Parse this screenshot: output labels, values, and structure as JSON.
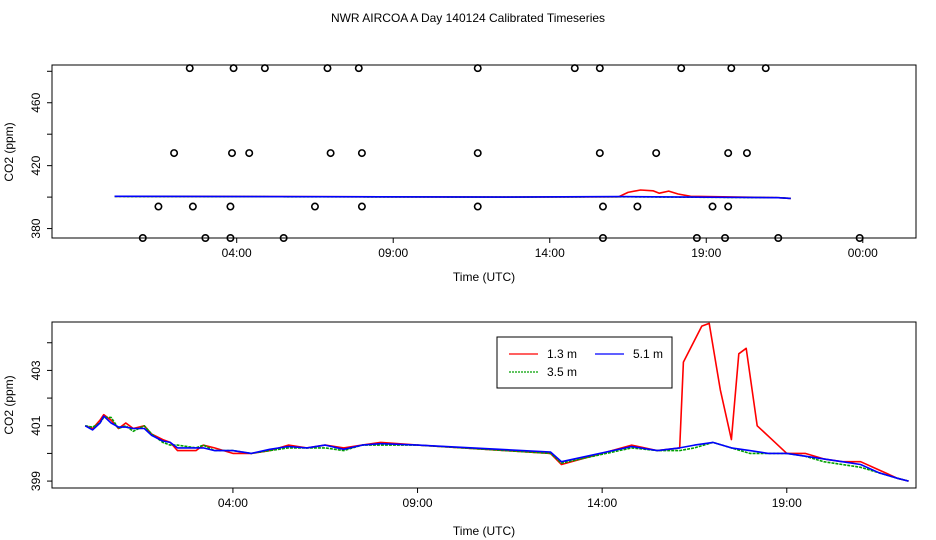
{
  "title": "NWR AIRCOA A  Day 140124  Calibrated Timeseries",
  "colors": {
    "series_1_3": "#ff0000",
    "series_3_5": "#00a000",
    "series_5_1": "#0000ff",
    "markers": "#000000"
  },
  "chart_data": [
    {
      "type": "scatter",
      "xlabel": "Time (UTC)",
      "ylabel": "CO2 (ppm)",
      "x_ticks": [
        "04:00",
        "09:00",
        "14:00",
        "19:00",
        "00:00"
      ],
      "y_ticks": [
        "380",
        "420",
        "460"
      ],
      "xlim_hours": [
        -1.9,
        25.7
      ],
      "ylim": [
        374,
        484
      ],
      "markers": [
        {
          "x": 1.0,
          "y": 374
        },
        {
          "x": 3.0,
          "y": 374
        },
        {
          "x": 3.8,
          "y": 374
        },
        {
          "x": 5.5,
          "y": 374
        },
        {
          "x": 15.7,
          "y": 374
        },
        {
          "x": 18.7,
          "y": 374
        },
        {
          "x": 19.6,
          "y": 374
        },
        {
          "x": 21.3,
          "y": 374
        },
        {
          "x": 23.9,
          "y": 374
        },
        {
          "x": 1.5,
          "y": 394
        },
        {
          "x": 2.6,
          "y": 394
        },
        {
          "x": 3.8,
          "y": 394
        },
        {
          "x": 6.5,
          "y": 394
        },
        {
          "x": 8.0,
          "y": 394
        },
        {
          "x": 11.7,
          "y": 394
        },
        {
          "x": 15.7,
          "y": 394
        },
        {
          "x": 16.8,
          "y": 394
        },
        {
          "x": 19.2,
          "y": 394
        },
        {
          "x": 19.7,
          "y": 394
        },
        {
          "x": 2.0,
          "y": 428
        },
        {
          "x": 3.85,
          "y": 428
        },
        {
          "x": 4.4,
          "y": 428
        },
        {
          "x": 7.0,
          "y": 428
        },
        {
          "x": 8.0,
          "y": 428
        },
        {
          "x": 11.7,
          "y": 428
        },
        {
          "x": 15.6,
          "y": 428
        },
        {
          "x": 17.4,
          "y": 428
        },
        {
          "x": 19.7,
          "y": 428
        },
        {
          "x": 20.3,
          "y": 428
        },
        {
          "x": 2.5,
          "y": 482
        },
        {
          "x": 3.9,
          "y": 482
        },
        {
          "x": 4.9,
          "y": 482
        },
        {
          "x": 6.9,
          "y": 482
        },
        {
          "x": 7.9,
          "y": 482
        },
        {
          "x": 11.7,
          "y": 482
        },
        {
          "x": 14.8,
          "y": 482
        },
        {
          "x": 15.6,
          "y": 482
        },
        {
          "x": 18.2,
          "y": 482
        },
        {
          "x": 19.8,
          "y": 482
        },
        {
          "x": 20.9,
          "y": 482
        }
      ],
      "series": [
        {
          "name": "1.3 m",
          "points": [
            [
              0.1,
              400.5
            ],
            [
              12.5,
              400.0
            ],
            [
              16.2,
              400.2
            ],
            [
              16.5,
              403
            ],
            [
              16.9,
              404.5
            ],
            [
              17.3,
              404
            ],
            [
              17.5,
              402.5
            ],
            [
              17.8,
              403.8
            ],
            [
              18.1,
              402
            ],
            [
              18.5,
              400.5
            ],
            [
              21.3,
              399.6
            ],
            [
              21.7,
              399.2
            ]
          ]
        },
        {
          "name": "3.5 m",
          "points": [
            [
              0.1,
              400.4
            ],
            [
              12.5,
              400.0
            ],
            [
              16.2,
              400.2
            ],
            [
              21.3,
              399.6
            ],
            [
              21.7,
              399.2
            ]
          ]
        },
        {
          "name": "5.1 m",
          "points": [
            [
              0.1,
              400.5
            ],
            [
              12.5,
              400.0
            ],
            [
              16.2,
              400.3
            ],
            [
              21.3,
              399.6
            ],
            [
              21.7,
              399.2
            ]
          ]
        }
      ]
    },
    {
      "type": "line",
      "xlabel": "Time (UTC)",
      "ylabel": "CO2 (ppm)",
      "x_ticks": [
        "04:00",
        "09:00",
        "14:00",
        "19:00"
      ],
      "y_ticks": [
        "399",
        "401",
        "403"
      ],
      "xlim_hours": [
        -0.9,
        22.5
      ],
      "ylim": [
        398.75,
        404.75
      ],
      "legend": "top-right",
      "series": [
        {
          "name": "1.3 m",
          "points": [
            [
              0,
              401.0
            ],
            [
              0.2,
              400.9
            ],
            [
              0.4,
              401.2
            ],
            [
              0.5,
              401.4
            ],
            [
              0.7,
              401.2
            ],
            [
              0.9,
              400.9
            ],
            [
              1.1,
              401.1
            ],
            [
              1.3,
              400.9
            ],
            [
              1.6,
              401.0
            ],
            [
              1.8,
              400.7
            ],
            [
              2.1,
              400.5
            ],
            [
              2.3,
              400.4
            ],
            [
              2.5,
              400.1
            ],
            [
              3.0,
              400.1
            ],
            [
              3.2,
              400.3
            ],
            [
              3.5,
              400.2
            ],
            [
              4.0,
              400.0
            ],
            [
              4.5,
              400.0
            ],
            [
              5.0,
              400.1
            ],
            [
              5.5,
              400.3
            ],
            [
              6.0,
              400.2
            ],
            [
              6.5,
              400.3
            ],
            [
              7.0,
              400.2
            ],
            [
              7.5,
              400.3
            ],
            [
              8.0,
              400.4
            ],
            [
              9.0,
              400.3
            ],
            [
              12.6,
              400.0
            ],
            [
              12.9,
              399.6
            ],
            [
              14.8,
              400.3
            ],
            [
              15.5,
              400.1
            ],
            [
              16.1,
              400.2
            ],
            [
              16.2,
              403.3
            ],
            [
              16.7,
              404.6
            ],
            [
              16.9,
              404.7
            ],
            [
              17.2,
              402.3
            ],
            [
              17.5,
              400.5
            ],
            [
              17.7,
              403.6
            ],
            [
              17.9,
              403.8
            ],
            [
              18.2,
              401.0
            ],
            [
              18.6,
              400.5
            ],
            [
              19.0,
              400.0
            ],
            [
              19.5,
              400.0
            ],
            [
              20.0,
              399.8
            ],
            [
              20.5,
              399.7
            ],
            [
              21.0,
              399.7
            ],
            [
              21.5,
              399.4
            ],
            [
              22.0,
              399.1
            ],
            [
              22.3,
              399.0
            ]
          ]
        },
        {
          "name": "3.5 m",
          "points": [
            [
              0,
              401.0
            ],
            [
              0.2,
              400.95
            ],
            [
              0.4,
              401.1
            ],
            [
              0.5,
              401.3
            ],
            [
              0.7,
              401.3
            ],
            [
              0.9,
              400.9
            ],
            [
              1.1,
              401.0
            ],
            [
              1.3,
              400.8
            ],
            [
              1.6,
              401.0
            ],
            [
              1.8,
              400.7
            ],
            [
              2.1,
              400.4
            ],
            [
              2.3,
              400.3
            ],
            [
              2.5,
              400.3
            ],
            [
              3.0,
              400.2
            ],
            [
              3.2,
              400.3
            ],
            [
              3.5,
              400.1
            ],
            [
              4.0,
              400.1
            ],
            [
              4.5,
              400.0
            ],
            [
              5.0,
              400.1
            ],
            [
              5.5,
              400.2
            ],
            [
              6.0,
              400.2
            ],
            [
              6.5,
              400.2
            ],
            [
              7.0,
              400.1
            ],
            [
              7.5,
              400.3
            ],
            [
              8.0,
              400.3
            ],
            [
              9.0,
              400.3
            ],
            [
              12.6,
              400.0
            ],
            [
              12.9,
              399.65
            ],
            [
              14.8,
              400.2
            ],
            [
              15.5,
              400.1
            ],
            [
              16.1,
              400.1
            ],
            [
              16.5,
              400.2
            ],
            [
              17.0,
              400.4
            ],
            [
              17.5,
              400.2
            ],
            [
              18.0,
              400.0
            ],
            [
              18.5,
              400.0
            ],
            [
              19.0,
              400.0
            ],
            [
              19.5,
              399.9
            ],
            [
              20.0,
              399.7
            ],
            [
              20.5,
              399.6
            ],
            [
              21.0,
              399.5
            ],
            [
              21.5,
              399.3
            ],
            [
              22.0,
              399.1
            ],
            [
              22.3,
              399.0
            ]
          ]
        },
        {
          "name": "5.1 m",
          "points": [
            [
              0,
              401.0
            ],
            [
              0.2,
              400.85
            ],
            [
              0.4,
              401.1
            ],
            [
              0.5,
              401.35
            ],
            [
              0.7,
              401.1
            ],
            [
              0.9,
              400.95
            ],
            [
              1.1,
              400.95
            ],
            [
              1.3,
              400.9
            ],
            [
              1.6,
              400.9
            ],
            [
              1.8,
              400.65
            ],
            [
              2.1,
              400.45
            ],
            [
              2.3,
              400.4
            ],
            [
              2.5,
              400.2
            ],
            [
              3.0,
              400.2
            ],
            [
              3.2,
              400.2
            ],
            [
              3.5,
              400.1
            ],
            [
              4.0,
              400.1
            ],
            [
              4.5,
              400.0
            ],
            [
              5.0,
              400.15
            ],
            [
              5.5,
              400.25
            ],
            [
              6.0,
              400.2
            ],
            [
              6.5,
              400.3
            ],
            [
              7.0,
              400.15
            ],
            [
              7.5,
              400.3
            ],
            [
              8.0,
              400.35
            ],
            [
              9.0,
              400.3
            ],
            [
              12.6,
              400.05
            ],
            [
              12.9,
              399.7
            ],
            [
              14.8,
              400.25
            ],
            [
              15.5,
              400.1
            ],
            [
              16.1,
              400.2
            ],
            [
              16.5,
              400.3
            ],
            [
              17.0,
              400.4
            ],
            [
              17.5,
              400.2
            ],
            [
              18.0,
              400.1
            ],
            [
              18.5,
              400.0
            ],
            [
              19.0,
              400.0
            ],
            [
              19.5,
              399.9
            ],
            [
              20.0,
              399.8
            ],
            [
              20.5,
              399.7
            ],
            [
              21.0,
              399.6
            ],
            [
              21.5,
              399.3
            ],
            [
              22.0,
              399.1
            ],
            [
              22.3,
              399.0
            ]
          ]
        }
      ]
    }
  ]
}
